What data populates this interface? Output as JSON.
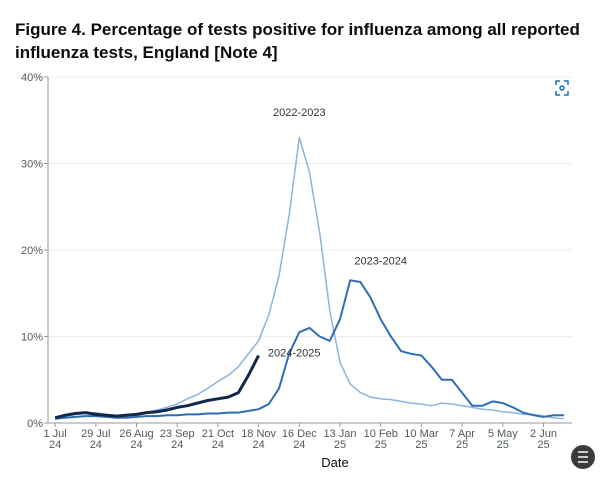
{
  "chart_data": {
    "type": "line",
    "title": "Figure 4. Percentage of tests positive for influenza among all reported influenza tests, England [Note 4]",
    "x_label": "Date",
    "xlim": [
      -0.7,
      50.8
    ],
    "xticks": [
      {
        "value": 0,
        "label": "1 Jul 24"
      },
      {
        "value": 4,
        "label": "29 Jul 24"
      },
      {
        "value": 8,
        "label": "26 Aug 24"
      },
      {
        "value": 12,
        "label": "23 Sep 24"
      },
      {
        "value": 16,
        "label": "21 Oct 24"
      },
      {
        "value": 20,
        "label": "18 Nov 24"
      },
      {
        "value": 24,
        "label": "16 Dec 24"
      },
      {
        "value": 28,
        "label": "13 Jan 25"
      },
      {
        "value": 32,
        "label": "10 Feb 25"
      },
      {
        "value": 36,
        "label": "10 Mar 25"
      },
      {
        "value": 40,
        "label": "7 Apr 25"
      },
      {
        "value": 44,
        "label": "5 May 25"
      },
      {
        "value": 48,
        "label": "2 Jun 25"
      }
    ],
    "ylim": [
      0,
      40
    ],
    "yticks": [
      {
        "value": 0,
        "label": "0%"
      },
      {
        "value": 10,
        "label": "10%"
      },
      {
        "value": 20,
        "label": "20%"
      },
      {
        "value": 30,
        "label": "30%"
      },
      {
        "value": 40,
        "label": "40%"
      }
    ],
    "grid": true,
    "series": [
      {
        "name": "2022-2023",
        "color": "#8cb4dc",
        "width": 1.5,
        "x": [
          0,
          1,
          2,
          3,
          4,
          5,
          6,
          7,
          8,
          9,
          10,
          11,
          12,
          13,
          14,
          15,
          16,
          17,
          18,
          19,
          20,
          21,
          22,
          23,
          24,
          25,
          26,
          27,
          28,
          29,
          30,
          31,
          32,
          33,
          34,
          35,
          36,
          37,
          38,
          39,
          40,
          41,
          42,
          43,
          44,
          45,
          46,
          47,
          48,
          49,
          50
        ],
        "values": [
          0.6,
          0.8,
          1.0,
          1.1,
          1.2,
          1.0,
          0.9,
          0.8,
          1.0,
          1.2,
          1.5,
          1.8,
          2.2,
          2.8,
          3.3,
          4.0,
          4.8,
          5.5,
          6.5,
          8.0,
          9.5,
          12.5,
          17,
          24,
          33,
          29,
          22,
          13,
          7,
          4.5,
          3.5,
          3.0,
          2.8,
          2.7,
          2.5,
          2.3,
          2.2,
          2.0,
          2.3,
          2.2,
          2.0,
          1.8,
          1.6,
          1.5,
          1.3,
          1.2,
          1.0,
          1.0,
          0.8,
          0.6,
          0.5
        ]
      },
      {
        "name": "2023-2024",
        "color": "#2f6eb5",
        "width": 2,
        "x": [
          0,
          1,
          2,
          3,
          4,
          5,
          6,
          7,
          8,
          9,
          10,
          11,
          12,
          13,
          14,
          15,
          16,
          17,
          18,
          19,
          20,
          21,
          22,
          23,
          24,
          25,
          26,
          27,
          28,
          29,
          30,
          31,
          32,
          33,
          34,
          35,
          36,
          37,
          38,
          39,
          40,
          41,
          42,
          43,
          44,
          45,
          46,
          47,
          48,
          49,
          50
        ],
        "values": [
          0.5,
          0.6,
          0.7,
          0.8,
          0.8,
          0.7,
          0.6,
          0.6,
          0.7,
          0.8,
          0.8,
          0.9,
          0.9,
          1.0,
          1.0,
          1.1,
          1.1,
          1.2,
          1.2,
          1.4,
          1.6,
          2.2,
          4.0,
          8.0,
          10.5,
          11,
          10,
          9.5,
          12,
          16.5,
          16.3,
          14.5,
          12,
          10,
          8.3,
          8.0,
          7.8,
          6.5,
          5,
          5,
          3.5,
          2,
          2,
          2.5,
          2.3,
          1.8,
          1.2,
          0.9,
          0.7,
          0.9,
          0.9
        ]
      },
      {
        "name": "2024-2025",
        "color": "#12284a",
        "width": 3,
        "x": [
          0,
          1,
          2,
          3,
          4,
          5,
          6,
          7,
          8,
          9,
          10,
          11,
          12,
          13,
          14,
          15,
          16,
          17,
          18,
          19,
          20
        ],
        "values": [
          0.6,
          0.9,
          1.1,
          1.2,
          1.0,
          0.9,
          0.8,
          0.9,
          1.0,
          1.2,
          1.3,
          1.5,
          1.8,
          2.0,
          2.3,
          2.6,
          2.8,
          3.0,
          3.5,
          5.5,
          7.8
        ]
      }
    ],
    "annotations": [
      {
        "series": 0,
        "at": [
          24,
          35.5
        ]
      },
      {
        "series": 1,
        "at": [
          32,
          18.3
        ]
      },
      {
        "series": 2,
        "at": [
          23.5,
          7.7
        ]
      }
    ]
  }
}
